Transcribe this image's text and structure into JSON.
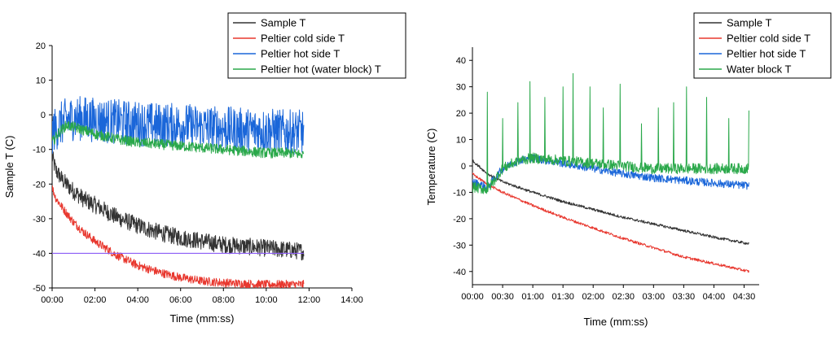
{
  "chart_data": [
    {
      "type": "line",
      "xlabel": "Time (mm:ss)",
      "ylabel": "Sample T (C)",
      "xlim": [
        0,
        840
      ],
      "ylim": [
        -50,
        20
      ],
      "x_ticks": [
        0,
        120,
        240,
        360,
        480,
        600,
        720,
        840
      ],
      "x_tick_labels": [
        "00:00",
        "02:00",
        "04:00",
        "06:00",
        "08:00",
        "10:00",
        "12:00",
        "14:00"
      ],
      "y_ticks": [
        -50,
        -40,
        -30,
        -20,
        -10,
        0,
        10,
        20
      ],
      "y_tick_labels": [
        "-50",
        "-40",
        "-30",
        "-20",
        "-10",
        "0",
        "10",
        "20"
      ],
      "legend_position": "top-right",
      "reference_lines": [
        {
          "name": "threshold",
          "y": -40,
          "x_range": [
            0,
            705
          ],
          "color": "#8b5cf6"
        }
      ],
      "series": [
        {
          "name": "Sample T",
          "color": "#333333",
          "x": [
            0,
            10,
            30,
            60,
            90,
            120,
            180,
            240,
            300,
            360,
            420,
            480,
            540,
            600,
            660,
            705
          ],
          "values": [
            -12,
            -16,
            -19,
            -22,
            -24.5,
            -26,
            -29.5,
            -32,
            -34,
            -35.5,
            -36.5,
            -37.5,
            -38,
            -38.5,
            -39,
            -39.5
          ],
          "noise": 5
        },
        {
          "name": "Peltier cold side T",
          "color": "#e8382f",
          "x": [
            0,
            10,
            30,
            60,
            90,
            120,
            180,
            240,
            300,
            360,
            420,
            480,
            540,
            600,
            660,
            705
          ],
          "values": [
            -21,
            -24,
            -27,
            -31,
            -34,
            -36.5,
            -40.5,
            -43.5,
            -45.5,
            -47,
            -48,
            -48.5,
            -48.8,
            -49,
            -49,
            -49
          ],
          "noise": 2.5
        },
        {
          "name": "Peltier hot side T",
          "color": "#1a66d9",
          "x": [
            0,
            20,
            40,
            60,
            90,
            120,
            180,
            240,
            300,
            360,
            420,
            480,
            540,
            600,
            660,
            705
          ],
          "values": [
            -5,
            -3,
            -1.5,
            -1,
            -1,
            -1.5,
            -2,
            -2.5,
            -3,
            -3,
            -3.5,
            -4,
            -4.5,
            -4.5,
            -5,
            -5
          ],
          "noise": 13
        },
        {
          "name": "Peltier hot (water block) T",
          "color": "#2aa84a",
          "x": [
            0,
            20,
            40,
            60,
            90,
            120,
            180,
            240,
            300,
            360,
            420,
            480,
            540,
            600,
            660,
            705
          ],
          "values": [
            -8,
            -5,
            -3,
            -3.5,
            -4.5,
            -5.5,
            -7,
            -8,
            -8.5,
            -9,
            -9.5,
            -10,
            -10.5,
            -11,
            -11,
            -11.5
          ],
          "noise": 3
        }
      ]
    },
    {
      "type": "line",
      "xlabel": "Time (mm:ss)",
      "ylabel": "Temperature (C)",
      "xlim": [
        0,
        285
      ],
      "ylim": [
        -45,
        45
      ],
      "x_ticks": [
        0,
        30,
        60,
        90,
        120,
        150,
        180,
        210,
        240,
        270
      ],
      "x_tick_labels": [
        "00:00",
        "00:30",
        "01:00",
        "01:30",
        "02:00",
        "02:30",
        "03:00",
        "03:30",
        "04:00",
        "04:30"
      ],
      "y_ticks": [
        -40,
        -30,
        -20,
        -10,
        0,
        10,
        20,
        30,
        40
      ],
      "y_tick_labels": [
        "-40",
        "-30",
        "-20",
        "-10",
        "0",
        "10",
        "20",
        "30",
        "40"
      ],
      "legend_position": "top-right",
      "series": [
        {
          "name": "Sample T",
          "color": "#333333",
          "x": [
            0,
            15,
            30,
            60,
            90,
            120,
            150,
            180,
            210,
            240,
            275
          ],
          "values": [
            2,
            -3,
            -6,
            -10,
            -13.5,
            -16.5,
            -19.5,
            -22,
            -24.5,
            -27,
            -29.5
          ],
          "noise": 1
        },
        {
          "name": "Peltier cold side T",
          "color": "#e8382f",
          "x": [
            0,
            15,
            30,
            60,
            90,
            120,
            150,
            180,
            210,
            240,
            275
          ],
          "values": [
            -3,
            -7,
            -10,
            -15,
            -19.5,
            -23.5,
            -27.5,
            -31,
            -34.5,
            -37,
            -40
          ],
          "noise": 1
        },
        {
          "name": "Peltier hot side T",
          "color": "#1a66d9",
          "x": [
            0,
            15,
            30,
            45,
            60,
            90,
            120,
            150,
            180,
            210,
            240,
            275
          ],
          "values": [
            -6,
            -8,
            -1,
            2,
            3,
            1,
            -1,
            -3,
            -4.5,
            -5.5,
            -6.5,
            -7.5
          ],
          "noise": 3
        },
        {
          "name": "Water block T",
          "color": "#2aa84a",
          "x": [
            0,
            15,
            30,
            45,
            60,
            90,
            120,
            150,
            180,
            210,
            240,
            275
          ],
          "values": [
            -8,
            -9,
            -1,
            2,
            3,
            2,
            1,
            0,
            -1,
            -1,
            -1,
            -1
          ],
          "noise": 4,
          "spikes": [
            [
              15,
              28
            ],
            [
              30,
              18
            ],
            [
              45,
              24
            ],
            [
              57,
              32
            ],
            [
              72,
              26
            ],
            [
              90,
              30
            ],
            [
              100,
              35
            ],
            [
              117,
              30
            ],
            [
              130,
              22
            ],
            [
              147,
              31
            ],
            [
              168,
              16
            ],
            [
              185,
              22
            ],
            [
              200,
              24
            ],
            [
              213,
              30
            ],
            [
              233,
              26
            ],
            [
              255,
              18
            ],
            [
              275,
              21
            ]
          ]
        }
      ]
    }
  ]
}
